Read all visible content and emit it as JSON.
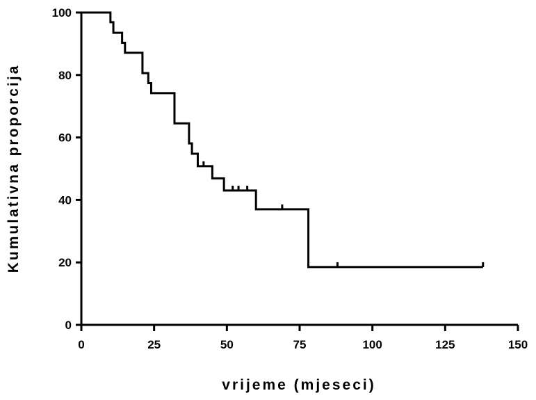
{
  "chart_data": {
    "type": "line",
    "subtype": "kaplan-meier-step",
    "title": "",
    "xlabel": "vrijeme (mjeseci)",
    "ylabel": "Kumulativna proporcija",
    "xlim": [
      0,
      150
    ],
    "ylim": [
      0,
      100
    ],
    "xticks": [
      0,
      25,
      50,
      75,
      100,
      125,
      150
    ],
    "yticks": [
      0,
      20,
      40,
      60,
      80,
      100
    ],
    "grid": false,
    "legend": "none",
    "line_color": "#000000",
    "series": [
      {
        "steps": [
          {
            "x": 0,
            "y": 100
          },
          {
            "x": 10,
            "y": 96.9
          },
          {
            "x": 11,
            "y": 93.5
          },
          {
            "x": 14,
            "y": 90.3
          },
          {
            "x": 15,
            "y": 87.1
          },
          {
            "x": 21,
            "y": 80.6
          },
          {
            "x": 23,
            "y": 77.4
          },
          {
            "x": 24,
            "y": 74.2
          },
          {
            "x": 32,
            "y": 64.5
          },
          {
            "x": 37,
            "y": 58.1
          },
          {
            "x": 38,
            "y": 54.8
          },
          {
            "x": 40,
            "y": 50.8
          },
          {
            "x": 45,
            "y": 46.9
          },
          {
            "x": 49,
            "y": 43.0
          },
          {
            "x": 60,
            "y": 37.0
          },
          {
            "x": 78,
            "y": 18.5
          },
          {
            "x": 138,
            "y": 18.5
          }
        ],
        "censored": [
          {
            "x": 42,
            "y": 50.8
          },
          {
            "x": 52,
            "y": 43.0
          },
          {
            "x": 54,
            "y": 43.0
          },
          {
            "x": 57,
            "y": 43.0
          },
          {
            "x": 69,
            "y": 37.0
          },
          {
            "x": 88,
            "y": 18.5
          },
          {
            "x": 138,
            "y": 18.5
          }
        ]
      }
    ]
  }
}
